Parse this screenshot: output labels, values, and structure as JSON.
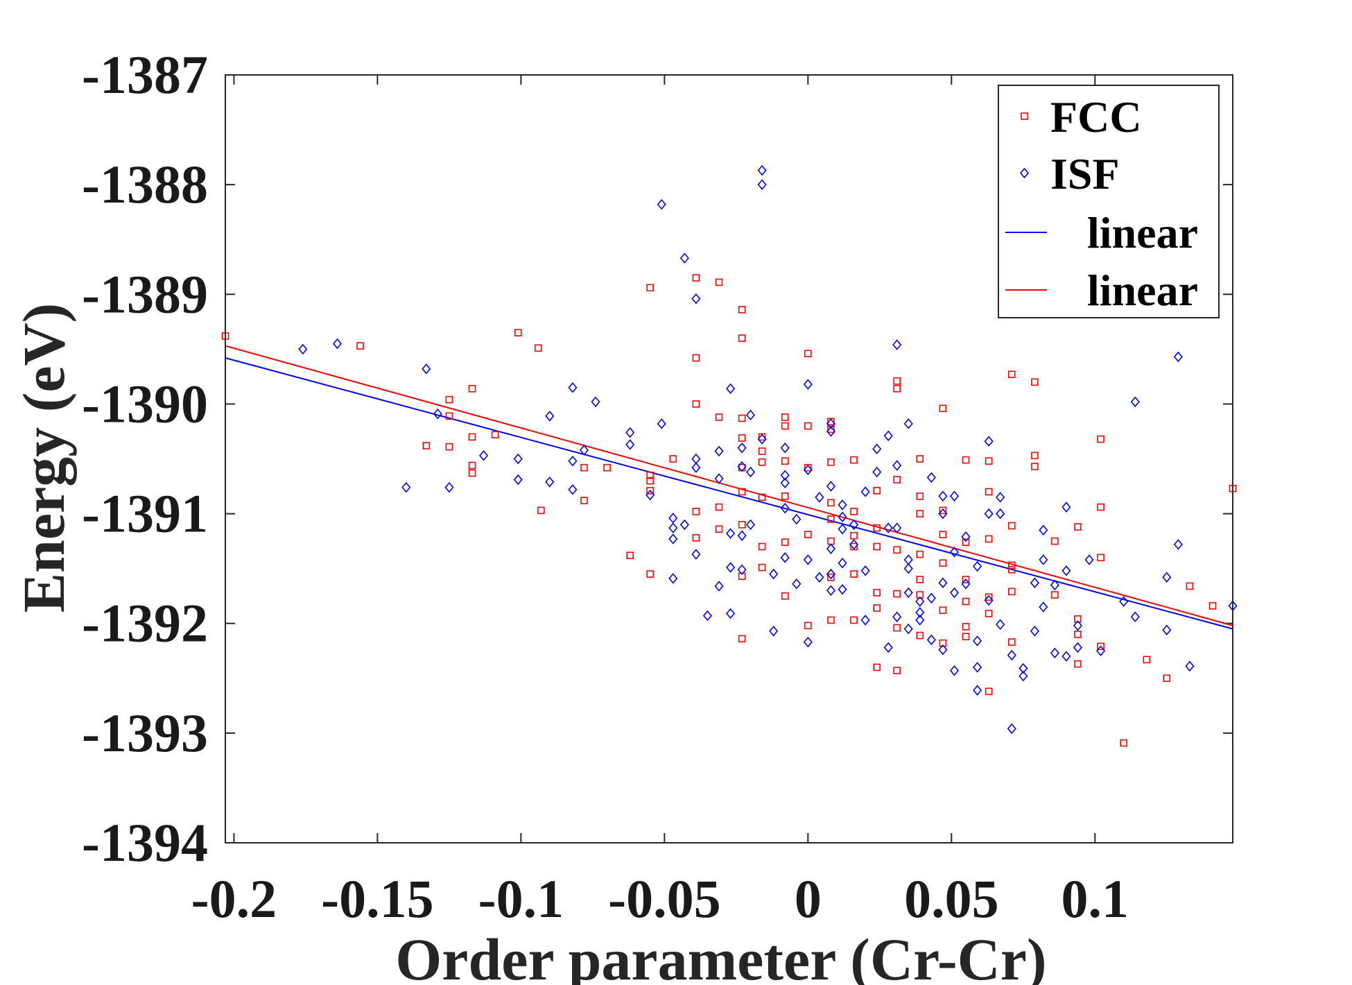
{
  "chart_data": {
    "type": "scatter",
    "title": "",
    "xlabel": "Order parameter (Cr-Cr)",
    "ylabel": "Energy (eV)",
    "xlim": [
      -0.203,
      0.148
    ],
    "ylim": [
      -1394,
      -1387
    ],
    "xticks": [
      -0.2,
      -0.15,
      -0.1,
      -0.05,
      0,
      0.05,
      0.1
    ],
    "xtick_labels": [
      "-0.2",
      "-0.15",
      "-0.1",
      "-0.05",
      "0",
      "0.05",
      "0.1"
    ],
    "yticks": [
      -1387,
      -1388,
      -1389,
      -1390,
      -1391,
      -1392,
      -1393,
      -1394
    ],
    "ytick_labels": [
      "-1387",
      "-1388",
      "-1389",
      "-1390",
      "-1391",
      "-1392",
      "-1393",
      "-1394"
    ],
    "grid": false,
    "legend_position": "top-right",
    "series": [
      {
        "name": "FCC",
        "kind": "scatter",
        "marker": "square",
        "color": "#ff0000",
        "x": [
          -0.203,
          -0.156,
          -0.133,
          -0.125,
          -0.125,
          -0.125,
          -0.117,
          -0.117,
          -0.117,
          -0.117,
          -0.109,
          -0.101,
          -0.094,
          -0.093,
          -0.078,
          -0.078,
          -0.07,
          -0.062,
          -0.055,
          -0.055,
          -0.055,
          -0.055,
          -0.055,
          -0.047,
          -0.039,
          -0.039,
          -0.039,
          -0.039,
          -0.039,
          -0.031,
          -0.031,
          -0.031,
          -0.031,
          -0.023,
          -0.023,
          -0.023,
          -0.023,
          -0.023,
          -0.023,
          -0.023,
          -0.023,
          -0.023,
          -0.016,
          -0.016,
          -0.016,
          -0.016,
          -0.016,
          -0.016,
          -0.008,
          -0.008,
          -0.008,
          -0.008,
          -0.008,
          -0.008,
          0,
          0,
          0,
          0,
          0,
          0.008,
          0.008,
          0.008,
          0.008,
          0.008,
          0.008,
          0.008,
          0.008,
          0.016,
          0.016,
          0.016,
          0.016,
          0.016,
          0.016,
          0.024,
          0.024,
          0.024,
          0.024,
          0.024,
          0.024,
          0.031,
          0.031,
          0.031,
          0.031,
          0.031,
          0.031,
          0.031,
          0.039,
          0.039,
          0.039,
          0.039,
          0.039,
          0.039,
          0.039,
          0.047,
          0.047,
          0.047,
          0.047,
          0.047,
          0.047,
          0.055,
          0.055,
          0.055,
          0.055,
          0.055,
          0.055,
          0.063,
          0.063,
          0.063,
          0.063,
          0.063,
          0.063,
          0.071,
          0.071,
          0.071,
          0.071,
          0.071,
          0.071,
          0.079,
          0.079,
          0.079,
          0.086,
          0.086,
          0.094,
          0.094,
          0.094,
          0.094,
          0.102,
          0.102,
          0.102,
          0.102,
          0.11,
          0.118,
          0.125,
          0.133,
          0.141,
          0.148
        ],
        "y": [
          -1389.38,
          -1389.47,
          -1390.38,
          -1389.96,
          -1390.11,
          -1390.39,
          -1389.86,
          -1390.56,
          -1390.63,
          -1390.3,
          -1390.28,
          -1389.35,
          -1389.49,
          -1390.97,
          -1390.58,
          -1390.88,
          -1390.58,
          -1391.38,
          -1388.94,
          -1390.65,
          -1390.7,
          -1390.79,
          -1391.55,
          -1390.5,
          -1388.85,
          -1389.58,
          -1390.0,
          -1390.98,
          -1391.22,
          -1388.89,
          -1390.12,
          -1390.94,
          -1391.14,
          -1389.14,
          -1389.4,
          -1390.13,
          -1390.31,
          -1390.58,
          -1390.8,
          -1391.1,
          -1391.57,
          -1392.14,
          -1390.3,
          -1390.43,
          -1390.53,
          -1390.85,
          -1391.3,
          -1391.49,
          -1390.12,
          -1390.2,
          -1390.52,
          -1390.84,
          -1391.26,
          -1391.75,
          -1389.54,
          -1390.2,
          -1390.58,
          -1391.19,
          -1392.02,
          -1390.16,
          -1390.23,
          -1390.53,
          -1390.9,
          -1391.05,
          -1391.25,
          -1391.58,
          -1391.97,
          -1390.51,
          -1390.98,
          -1391.3,
          -1391.55,
          -1391.97,
          -1391.2,
          -1390.79,
          -1391.13,
          -1391.3,
          -1391.72,
          -1391.86,
          -1392.4,
          -1389.79,
          -1389.86,
          -1390.69,
          -1391.33,
          -1391.73,
          -1392.04,
          -1392.43,
          -1390.5,
          -1390.84,
          -1391.0,
          -1391.37,
          -1391.6,
          -1391.74,
          -1392.11,
          -1390.04,
          -1390.97,
          -1391.19,
          -1391.45,
          -1391.88,
          -1392.18,
          -1390.51,
          -1391.26,
          -1391.6,
          -1391.8,
          -1392.03,
          -1392.12,
          -1390.52,
          -1390.8,
          -1391.23,
          -1391.76,
          -1391.91,
          -1392.62,
          -1389.73,
          -1391.11,
          -1391.47,
          -1391.51,
          -1391.71,
          -1392.17,
          -1389.8,
          -1390.47,
          -1390.57,
          -1391.25,
          -1391.74,
          -1391.12,
          -1391.96,
          -1392.1,
          -1392.37,
          -1390.32,
          -1390.94,
          -1391.4,
          -1392.21,
          -1393.09,
          -1392.33,
          -1392.5,
          -1391.66,
          -1391.84,
          -1390.77
        ],
        "fit": {
          "name": "linear",
          "x": [
            -0.203,
            0.148
          ],
          "y": [
            -1389.47,
            -1392.02
          ]
        }
      },
      {
        "name": "ISF",
        "kind": "scatter",
        "marker": "diamond",
        "color": "#0000ff",
        "x": [
          -0.176,
          -0.164,
          -0.14,
          -0.133,
          -0.129,
          -0.125,
          -0.113,
          -0.101,
          -0.101,
          -0.09,
          -0.09,
          -0.082,
          -0.082,
          -0.082,
          -0.078,
          -0.074,
          -0.062,
          -0.062,
          -0.055,
          -0.051,
          -0.051,
          -0.047,
          -0.047,
          -0.047,
          -0.047,
          -0.043,
          -0.043,
          -0.039,
          -0.039,
          -0.039,
          -0.039,
          -0.035,
          -0.031,
          -0.031,
          -0.031,
          -0.027,
          -0.027,
          -0.027,
          -0.027,
          -0.023,
          -0.023,
          -0.023,
          -0.023,
          -0.02,
          -0.02,
          -0.02,
          -0.016,
          -0.016,
          -0.016,
          -0.012,
          -0.012,
          -0.008,
          -0.008,
          -0.008,
          -0.008,
          -0.008,
          -0.004,
          -0.004,
          0,
          0,
          0,
          0,
          0.004,
          0.004,
          0.008,
          0.008,
          0.008,
          0.008,
          0.008,
          0.008,
          0.012,
          0.012,
          0.012,
          0.012,
          0.012,
          0.016,
          0.016,
          0.02,
          0.02,
          0.02,
          0.024,
          0.024,
          0.028,
          0.028,
          0.028,
          0.031,
          0.031,
          0.031,
          0.031,
          0.035,
          0.035,
          0.035,
          0.035,
          0.035,
          0.039,
          0.039,
          0.039,
          0.043,
          0.043,
          0.043,
          0.047,
          0.047,
          0.047,
          0.047,
          0.051,
          0.051,
          0.051,
          0.051,
          0.055,
          0.055,
          0.059,
          0.059,
          0.059,
          0.059,
          0.063,
          0.063,
          0.063,
          0.067,
          0.067,
          0.067,
          0.071,
          0.071,
          0.075,
          0.075,
          0.079,
          0.079,
          0.082,
          0.082,
          0.082,
          0.086,
          0.086,
          0.09,
          0.09,
          0.09,
          0.094,
          0.094,
          0.098,
          0.102,
          0.11,
          0.114,
          0.114,
          0.125,
          0.125,
          0.129,
          0.129,
          0.133,
          0.148
        ],
        "y": [
          -1389.5,
          -1389.45,
          -1390.76,
          -1389.68,
          -1390.09,
          -1390.76,
          -1390.47,
          -1390.5,
          -1390.69,
          -1390.11,
          -1390.71,
          -1389.85,
          -1390.52,
          -1390.78,
          -1390.42,
          -1389.98,
          -1390.26,
          -1390.37,
          -1390.83,
          -1388.18,
          -1390.18,
          -1391.04,
          -1391.13,
          -1391.23,
          -1391.59,
          -1388.67,
          -1391.1,
          -1389.04,
          -1390.5,
          -1390.58,
          -1391.37,
          -1391.93,
          -1390.43,
          -1390.68,
          -1391.66,
          -1389.86,
          -1391.18,
          -1391.49,
          -1391.91,
          -1390.4,
          -1390.57,
          -1391.2,
          -1391.51,
          -1390.1,
          -1390.62,
          -1391.1,
          -1387.87,
          -1388.0,
          -1390.32,
          -1391.55,
          -1392.07,
          -1390.4,
          -1390.65,
          -1390.72,
          -1390.95,
          -1391.4,
          -1391.05,
          -1391.64,
          -1389.82,
          -1390.6,
          -1391.42,
          -1392.17,
          -1390.85,
          -1391.58,
          -1390.18,
          -1390.25,
          -1390.75,
          -1391.32,
          -1391.55,
          -1391.7,
          -1390.92,
          -1391.03,
          -1391.14,
          -1391.45,
          -1391.69,
          -1391.1,
          -1391.28,
          -1390.8,
          -1391.52,
          -1391.97,
          -1390.41,
          -1390.62,
          -1390.29,
          -1391.13,
          -1392.22,
          -1389.46,
          -1390.56,
          -1391.13,
          -1391.94,
          -1390.18,
          -1391.42,
          -1391.5,
          -1391.72,
          -1392.05,
          -1391.8,
          -1391.9,
          -1391.97,
          -1390.67,
          -1391.77,
          -1392.15,
          -1390.84,
          -1391.0,
          -1391.63,
          -1392.24,
          -1390.84,
          -1391.35,
          -1391.72,
          -1392.43,
          -1391.21,
          -1391.64,
          -1391.48,
          -1392.16,
          -1392.4,
          -1392.61,
          -1390.34,
          -1391.0,
          -1391.79,
          -1390.85,
          -1391.0,
          -1392.01,
          -1392.29,
          -1392.96,
          -1392.41,
          -1392.48,
          -1391.63,
          -1392.07,
          -1391.15,
          -1391.42,
          -1391.85,
          -1391.65,
          -1392.27,
          -1391.52,
          -1392.3,
          -1390.94,
          -1392.02,
          -1392.22,
          -1391.42,
          -1392.25,
          -1391.8,
          -1389.98,
          -1391.94,
          -1391.58,
          -1392.06,
          -1389.57,
          -1391.28,
          -1392.39,
          -1391.84
        ],
        "fit": {
          "name": "linear",
          "x": [
            -0.203,
            0.148
          ],
          "y": [
            -1389.58,
            -1392.05
          ]
        }
      }
    ],
    "legend": [
      {
        "label": "FCC",
        "marker": "square",
        "color": "#ff0000"
      },
      {
        "label": "ISF",
        "marker": "diamond",
        "color": "#0000ff"
      },
      {
        "label": "linear",
        "marker": "line",
        "color": "#0000ff"
      },
      {
        "label": "linear",
        "marker": "line",
        "color": "#ff0000"
      }
    ]
  }
}
